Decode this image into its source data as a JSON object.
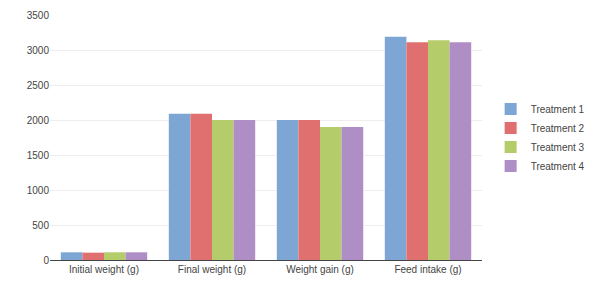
{
  "chart_data": {
    "type": "bar",
    "categories": [
      "Initial weight (g)",
      "Final weight (g)",
      "Weight gain (g)",
      "Feed intake (g)"
    ],
    "series": [
      {
        "name": "Treatment 1",
        "color": "#7EA6D4",
        "values": [
          110,
          2090,
          2000,
          3190
        ]
      },
      {
        "name": "Treatment 2",
        "color": "#E07070",
        "values": [
          105,
          2090,
          2000,
          3110
        ]
      },
      {
        "name": "Treatment 3",
        "color": "#B5CC6A",
        "values": [
          110,
          2000,
          1900,
          3140
        ]
      },
      {
        "name": "Treatment 4",
        "color": "#AE8EC4",
        "values": [
          110,
          2000,
          1900,
          3110
        ]
      }
    ],
    "ylim": [
      0,
      3500
    ],
    "yticks": [
      0,
      500,
      1000,
      1500,
      2000,
      2500,
      3000,
      3500
    ],
    "grid": true,
    "legend": "right"
  }
}
